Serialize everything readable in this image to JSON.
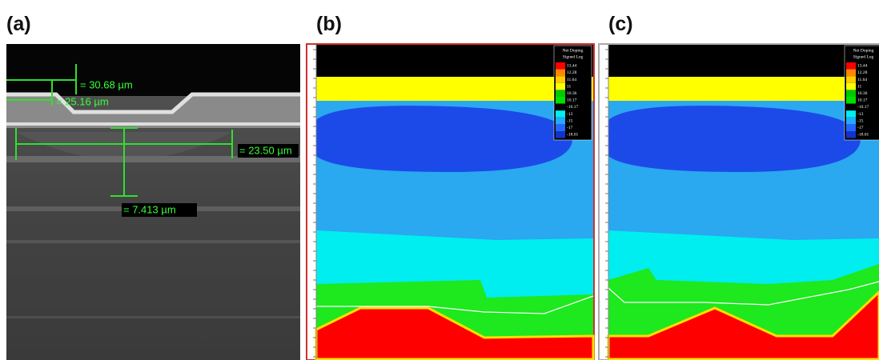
{
  "panels": [
    {
      "label": "(a)",
      "measurements": [
        "= 30.68 µm",
        "= 25.16 µm",
        "= 23.50 µm",
        "= 7.413 µm"
      ]
    },
    {
      "label": "(b)"
    },
    {
      "label": "(c)"
    }
  ],
  "legend": {
    "title": "Net Doping",
    "subtitle": "Signed Log",
    "labels": [
      "13.44",
      "12.28",
      "11.64",
      "11",
      "10.36",
      "10.17",
      "-10.17",
      "-13",
      "-15",
      "-17",
      "-18.01"
    ]
  }
}
